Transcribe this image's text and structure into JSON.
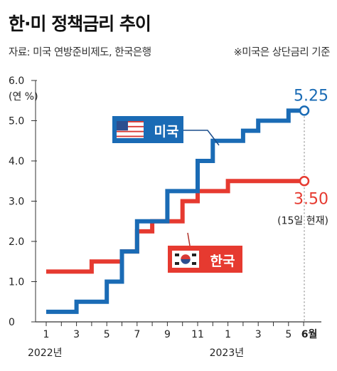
{
  "header": {
    "title": "한·미 정책금리 추이",
    "source": "자료: 미국 연방준비제도, 한국은행",
    "note": "※미국은 상단금리 기준"
  },
  "chart_data": {
    "type": "line",
    "step": true,
    "unit_label": "(연 %)",
    "y_ticks": [
      "0",
      "1.0",
      "2.0",
      "3.0",
      "4.0",
      "5.0",
      "6.0"
    ],
    "ylim": [
      0,
      6
    ],
    "x_tick_labels": [
      "1",
      "3",
      "5",
      "7",
      "9",
      "11",
      "1",
      "3",
      "5",
      "6월"
    ],
    "x_tick_index": [
      0,
      2,
      4,
      6,
      8,
      10,
      12,
      14,
      16,
      17
    ],
    "year_labels": [
      {
        "text": "2022년",
        "index": 0
      },
      {
        "text": "2023년",
        "index": 12
      }
    ],
    "series": [
      {
        "name": "미국",
        "color": "#1a6bb5",
        "flag": "us-flag",
        "end_label": "5.25",
        "steps": [
          {
            "x": 0,
            "y": 0.25
          },
          {
            "x": 2,
            "y": 0.5
          },
          {
            "x": 4,
            "y": 1.0
          },
          {
            "x": 5,
            "y": 1.75
          },
          {
            "x": 6,
            "y": 2.5
          },
          {
            "x": 8,
            "y": 3.25
          },
          {
            "x": 10,
            "y": 4.0
          },
          {
            "x": 11,
            "y": 4.5
          },
          {
            "x": 13,
            "y": 4.75
          },
          {
            "x": 14,
            "y": 5.0
          },
          {
            "x": 16,
            "y": 5.25
          },
          {
            "x": 17.5,
            "y": 5.25
          }
        ]
      },
      {
        "name": "한국",
        "color": "#e63a30",
        "flag": "kr-flag",
        "end_label": "3.50",
        "end_note": "(15일 현재)",
        "steps": [
          {
            "x": 0,
            "y": 1.25
          },
          {
            "x": 3,
            "y": 1.5
          },
          {
            "x": 5,
            "y": 1.75
          },
          {
            "x": 6,
            "y": 2.25
          },
          {
            "x": 7,
            "y": 2.5
          },
          {
            "x": 9,
            "y": 3.0
          },
          {
            "x": 10,
            "y": 3.25
          },
          {
            "x": 12,
            "y": 3.5
          },
          {
            "x": 17.5,
            "y": 3.5
          }
        ]
      }
    ]
  }
}
